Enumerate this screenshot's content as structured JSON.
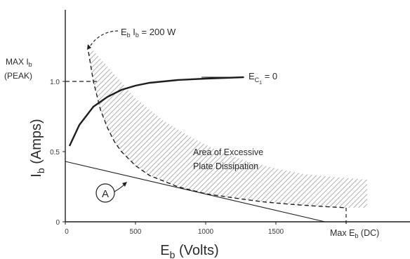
{
  "chart_data": {
    "type": "line",
    "xlabel": "Eb (Volts)",
    "ylabel": "Ib (Amps)",
    "x_ticks": [
      0,
      500,
      1000,
      1500
    ],
    "y_ticks": [
      0,
      0.5,
      1.0
    ],
    "x_tick_labels": [
      "0",
      "500",
      "1000",
      "1500"
    ],
    "y_tick_labels": [
      "0",
      "0.5",
      "1.0"
    ],
    "xlim": [
      0,
      2200
    ],
    "ylim": [
      0,
      1.45
    ],
    "grid": false,
    "series": [
      {
        "name": "EC1 = 0",
        "style": "solid-thick",
        "x": [
          30,
          100,
          200,
          300,
          400,
          500,
          600,
          800,
          1000,
          1270
        ],
        "y": [
          0.54,
          0.69,
          0.82,
          0.89,
          0.94,
          0.97,
          0.99,
          1.01,
          1.02,
          1.03
        ]
      },
      {
        "name": "Eb Ib = 200W",
        "style": "dashed",
        "x": [
          165,
          200,
          250,
          300,
          350,
          400,
          500,
          600,
          800,
          1000,
          1200,
          1400,
          1600,
          1800,
          2000
        ],
        "y": [
          1.21,
          1.0,
          0.8,
          0.67,
          0.57,
          0.5,
          0.4,
          0.33,
          0.25,
          0.2,
          0.17,
          0.143,
          0.125,
          0.111,
          0.1
        ]
      },
      {
        "name": "A",
        "style": "solid-thin",
        "x": [
          0,
          1850
        ],
        "y": [
          0.43,
          0
        ]
      }
    ],
    "region": {
      "label_line1": "Area of Excessive",
      "label_line2": "Plate Dissipation",
      "fill": "hatched"
    },
    "annotations": {
      "max_ib_line1": "MAX Ib",
      "max_ib_line2": "(PEAK)",
      "max_ib_value": 1.0,
      "max_eb_label": "Max Eb (DC)",
      "max_eb_value": 2000,
      "power_label": "Eb Ib = 200W",
      "ec1_label": "EC1 = 0",
      "load_line_label": "A"
    }
  },
  "colors": {
    "ink": "#1e1e1e",
    "hatch": "#8a8a8a",
    "background": "#ffffff"
  }
}
